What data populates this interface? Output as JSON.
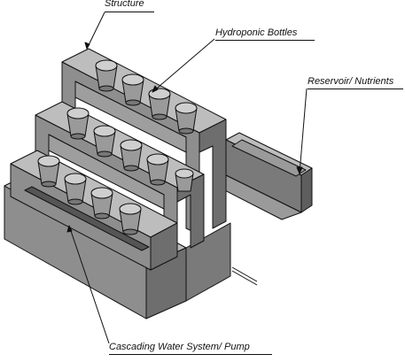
{
  "labels": {
    "structure": "Structure",
    "bottles": "Hydroponic Bottles",
    "reservoir": "Reservoir/ Nutrients",
    "pump": "Cascading Water System/ Pump"
  },
  "colors": {
    "face_top": "#bdbdbd",
    "face_front": "#8e8e8e",
    "face_side": "#6e6e6e",
    "cup_fill": "#cfcfcf",
    "outline": "#111111"
  },
  "tiers": [
    {
      "name": "top",
      "cups": 4
    },
    {
      "name": "middle",
      "cups": 5
    },
    {
      "name": "bottom",
      "cups": 4
    }
  ]
}
